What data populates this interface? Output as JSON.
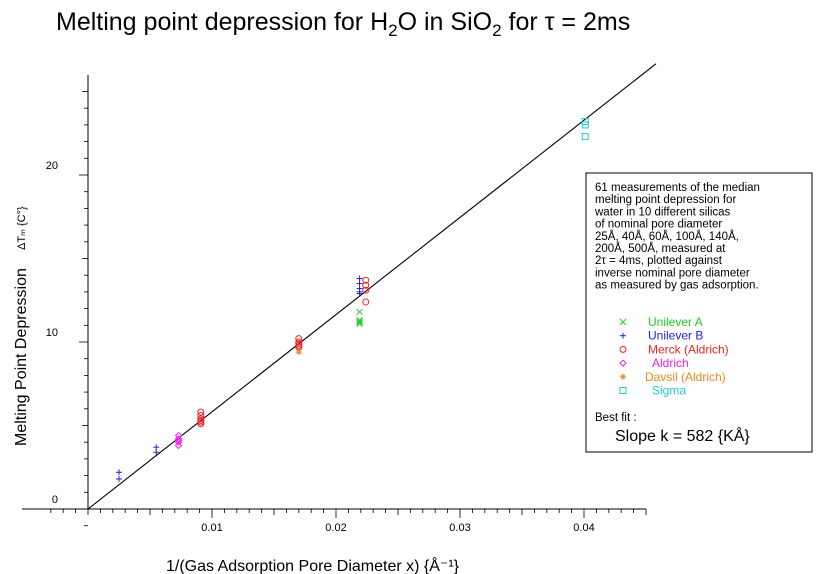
{
  "chart_data": {
    "type": "scatter",
    "title": {
      "parts": [
        {
          "text": "Melting  point  depression  for  H"
        },
        {
          "text": "2",
          "sub": true
        },
        {
          "text": "O    in  SiO"
        },
        {
          "text": "2",
          "sub": true
        },
        {
          "text": "  for  τ  =  2ms"
        }
      ]
    },
    "xlabel": "1/(Gas Adsorption Pore Diameter x)  {Å⁻¹}",
    "ylabel": "Melting  Point  Depression",
    "ylabel_symbol": "ΔTₘ  {C°}",
    "xlim": [
      -0.003,
      0.045
    ],
    "ylim": [
      -1.8,
      26
    ],
    "x_ticks": [
      0.01,
      0.02,
      0.03,
      0.04
    ],
    "x_tick_labels": [
      "0.01",
      "0.02",
      "0.03",
      "0.04"
    ],
    "y_ticks": [
      0,
      10,
      20
    ],
    "y_tick_labels": [
      "0",
      "10",
      "20"
    ],
    "grid": false,
    "fit_line": {
      "slope": 582,
      "intercept": 0,
      "x_range": [
        0,
        0.0458
      ]
    },
    "series": [
      {
        "name": "Unilever  A",
        "marker": "x",
        "color": "#22cc22",
        "x": [
          0.0219,
          0.0219,
          0.0219,
          0.0219
        ],
        "y": [
          11.8,
          11.3,
          11.1,
          11.2
        ]
      },
      {
        "name": "Unilever  B",
        "marker": "+",
        "color": "#2222dd",
        "x": [
          0.0025,
          0.0025,
          0.0055,
          0.0055,
          0.0219,
          0.0219,
          0.0219,
          0.0219,
          0.0219
        ],
        "y": [
          2.2,
          1.8,
          3.7,
          3.4,
          13.8,
          13.5,
          13.2,
          13.0,
          12.9
        ]
      },
      {
        "name": "Merck  (Aldrich)",
        "marker": "circle",
        "color": "#ee2222",
        "x": [
          0.0091,
          0.0091,
          0.0091,
          0.0091,
          0.0091,
          0.0091,
          0.017,
          0.017,
          0.017,
          0.017,
          0.017,
          0.0224,
          0.0224,
          0.0224,
          0.0224
        ],
        "y": [
          5.8,
          5.6,
          5.4,
          5.3,
          5.2,
          5.1,
          10.2,
          10.0,
          9.9,
          9.8,
          9.7,
          13.7,
          13.4,
          13.1,
          12.4
        ]
      },
      {
        "name": "Aldrich",
        "marker": "diamond",
        "color": "#ee22ee",
        "x": [
          0.0073,
          0.0073,
          0.0073,
          0.0073,
          0.0073
        ],
        "y": [
          4.4,
          4.2,
          4.1,
          4.0,
          3.8
        ]
      },
      {
        "name": "Davsil  (Aldrich)",
        "marker": "star",
        "color": "#ee8822",
        "x": [
          0.017
        ],
        "y": [
          9.4
        ]
      },
      {
        "name": "Sigma",
        "marker": "square",
        "color": "#22cccc",
        "x": [
          0.0401,
          0.0401,
          0.0401
        ],
        "y": [
          23.2,
          23.0,
          22.3
        ]
      }
    ],
    "annotation": [
      "61  measurements  of  the  median",
      "melting  point  depression  for",
      "water  in  10  different  silicas",
      "of  nominal  pore  diameter",
      "25Å,  40Å,  60Å,  100Å,  140Å,",
      "200Å,  500Å,  measured  at",
      "2τ  =  4ms,  plotted  against",
      "inverse  nominal  pore  diameter",
      "as  measured  by  gas  adsorption."
    ],
    "best_fit_label": "Best  fit  :",
    "slope_text": "Slope  k  =    582  {KÅ}",
    "legend_position": "right"
  }
}
